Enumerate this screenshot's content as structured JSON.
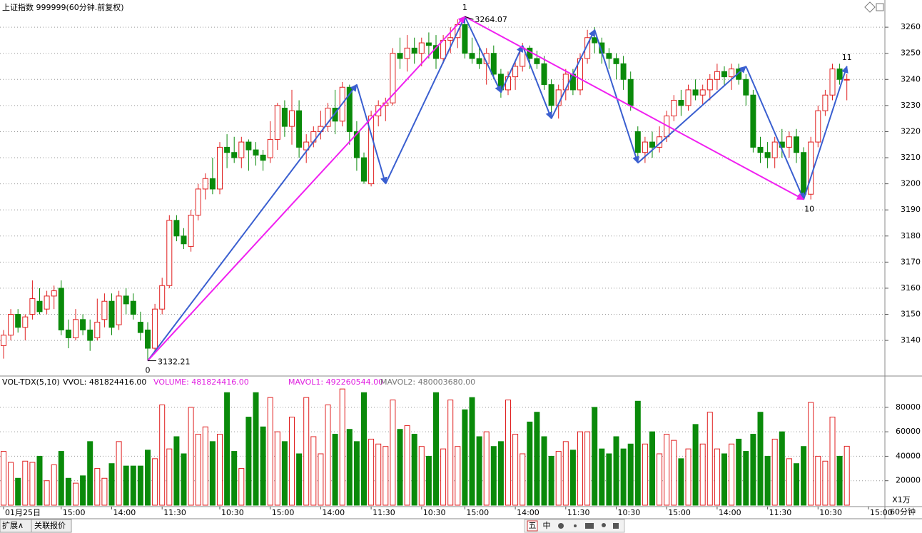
{
  "chart_data": {
    "type": "candlestick",
    "title": "上证指数 999999(60分钟.前复权)",
    "ylim": [
      3126.9,
      3265.5
    ],
    "yticks": [
      3140,
      3150,
      3160,
      3170,
      3180,
      3190,
      3200,
      3210,
      3220,
      3230,
      3240,
      3250,
      3260
    ],
    "grid": true,
    "up_color": "#e02020",
    "down_color": "#0a8a0a",
    "candles": [
      [
        3138,
        3144,
        3133,
        3142
      ],
      [
        3142,
        3152,
        3140,
        3150
      ],
      [
        3150,
        3152,
        3143,
        3145
      ],
      [
        3145,
        3150,
        3140,
        3149
      ],
      [
        3150,
        3163,
        3148,
        3156
      ],
      [
        3155,
        3160,
        3150,
        3151
      ],
      [
        3152,
        3159,
        3150,
        3157
      ],
      [
        3157,
        3161,
        3152,
        3159
      ],
      [
        3160,
        3163,
        3142,
        3144
      ],
      [
        3144,
        3148,
        3137,
        3141
      ],
      [
        3141,
        3152,
        3140,
        3148
      ],
      [
        3148,
        3150,
        3142,
        3144
      ],
      [
        3144,
        3148,
        3136,
        3140
      ],
      [
        3141,
        3156,
        3140,
        3147
      ],
      [
        3148,
        3158,
        3145,
        3155
      ],
      [
        3155,
        3158,
        3142,
        3145
      ],
      [
        3146,
        3159,
        3144,
        3157
      ],
      [
        3157,
        3160,
        3150,
        3154
      ],
      [
        3155,
        3158,
        3148,
        3150
      ],
      [
        3147,
        3151,
        3140,
        3143
      ],
      [
        3144,
        3147,
        3132.21,
        3137
      ],
      [
        3137,
        3154,
        3136,
        3152
      ],
      [
        3152,
        3164,
        3150,
        3161
      ],
      [
        3161,
        3188,
        3160,
        3186
      ],
      [
        3186,
        3188,
        3178,
        3180
      ],
      [
        3180,
        3183,
        3175,
        3177
      ],
      [
        3176,
        3190,
        3174,
        3188
      ],
      [
        3188,
        3200,
        3186,
        3198
      ],
      [
        3198,
        3204,
        3194,
        3202
      ],
      [
        3202,
        3210,
        3196,
        3198
      ],
      [
        3198,
        3216,
        3196,
        3214
      ],
      [
        3214,
        3219,
        3206,
        3212
      ],
      [
        3212,
        3218,
        3208,
        3210
      ],
      [
        3210,
        3218,
        3206,
        3216
      ],
      [
        3216,
        3217,
        3205,
        3213
      ],
      [
        3213,
        3216,
        3207,
        3211
      ],
      [
        3211,
        3213,
        3205,
        3209
      ],
      [
        3210,
        3224,
        3208,
        3217
      ],
      [
        3217,
        3231,
        3213,
        3230
      ],
      [
        3229,
        3232,
        3218,
        3222
      ],
      [
        3222,
        3236,
        3215,
        3228
      ],
      [
        3228,
        3232,
        3210,
        3214
      ],
      [
        3213,
        3219,
        3208,
        3216
      ],
      [
        3216,
        3222,
        3214,
        3220
      ],
      [
        3220,
        3228,
        3217,
        3222
      ],
      [
        3222,
        3231,
        3220,
        3229
      ],
      [
        3229,
        3236,
        3219,
        3224
      ],
      [
        3224,
        3239,
        3222,
        3237
      ],
      [
        3237,
        3238,
        3215,
        3220
      ],
      [
        3220,
        3224,
        3205,
        3210
      ],
      [
        3210,
        3212,
        3200,
        3201
      ],
      [
        3200,
        3228,
        3199,
        3226
      ],
      [
        3226,
        3232,
        3222,
        3230
      ],
      [
        3230,
        3233,
        3224,
        3231
      ],
      [
        3231,
        3252,
        3230,
        3250
      ],
      [
        3250,
        3256,
        3244,
        3248
      ],
      [
        3248,
        3257,
        3243,
        3252
      ],
      [
        3252,
        3256,
        3246,
        3250
      ],
      [
        3250,
        3256,
        3245,
        3254
      ],
      [
        3254,
        3258,
        3248,
        3253
      ],
      [
        3253,
        3257,
        3244,
        3248
      ],
      [
        3248,
        3257,
        3246,
        3255
      ],
      [
        3255,
        3260,
        3250,
        3256
      ],
      [
        3256,
        3263,
        3252,
        3261
      ],
      [
        3261,
        3264.07,
        3248,
        3250
      ],
      [
        3250,
        3256,
        3246,
        3248
      ],
      [
        3248,
        3252,
        3244,
        3246
      ],
      [
        3246,
        3252,
        3238,
        3250
      ],
      [
        3250,
        3253,
        3240,
        3242
      ],
      [
        3242,
        3244,
        3233,
        3236
      ],
      [
        3236,
        3243,
        3234,
        3241
      ],
      [
        3241,
        3247,
        3236,
        3245
      ],
      [
        3245,
        3254,
        3243,
        3252
      ],
      [
        3252,
        3253,
        3244,
        3248
      ],
      [
        3248,
        3251,
        3244,
        3246
      ],
      [
        3246,
        3249,
        3236,
        3238
      ],
      [
        3238,
        3240,
        3226,
        3230
      ],
      [
        3230,
        3238,
        3225,
        3236
      ],
      [
        3236,
        3244,
        3232,
        3242
      ],
      [
        3242,
        3244,
        3234,
        3236
      ],
      [
        3236,
        3250,
        3234,
        3248
      ],
      [
        3248,
        3259,
        3246,
        3256
      ],
      [
        3256,
        3260,
        3250,
        3254
      ],
      [
        3254,
        3256,
        3246,
        3250
      ],
      [
        3250,
        3252,
        3244,
        3248
      ],
      [
        3248,
        3250,
        3240,
        3246
      ],
      [
        3246,
        3249,
        3236,
        3240
      ],
      [
        3240,
        3243,
        3228,
        3230
      ],
      [
        3220,
        3222,
        3210,
        3212
      ],
      [
        3212,
        3218,
        3208,
        3216
      ],
      [
        3216,
        3220,
        3210,
        3214
      ],
      [
        3214,
        3222,
        3212,
        3218
      ],
      [
        3218,
        3228,
        3216,
        3226
      ],
      [
        3226,
        3234,
        3224,
        3232
      ],
      [
        3232,
        3236,
        3226,
        3230
      ],
      [
        3230,
        3238,
        3228,
        3236
      ],
      [
        3236,
        3240,
        3232,
        3234
      ],
      [
        3234,
        3238,
        3230,
        3236
      ],
      [
        3236,
        3242,
        3232,
        3240
      ],
      [
        3240,
        3246,
        3236,
        3243
      ],
      [
        3243,
        3245,
        3238,
        3241
      ],
      [
        3241,
        3246,
        3236,
        3244
      ],
      [
        3244,
        3246,
        3238,
        3240
      ],
      [
        3240,
        3242,
        3230,
        3234
      ],
      [
        3234,
        3236,
        3212,
        3214
      ],
      [
        3214,
        3218,
        3208,
        3212
      ],
      [
        3212,
        3216,
        3206,
        3210
      ],
      [
        3210,
        3218,
        3206,
        3216
      ],
      [
        3216,
        3221,
        3210,
        3214
      ],
      [
        3214,
        3220,
        3210,
        3218
      ],
      [
        3218,
        3221,
        3208,
        3212
      ],
      [
        3212,
        3214,
        3194,
        3196
      ],
      [
        3196,
        3218,
        3194,
        3216
      ],
      [
        3216,
        3230,
        3214,
        3228
      ],
      [
        3228,
        3236,
        3226,
        3234
      ],
      [
        3234,
        3246,
        3232,
        3244
      ],
      [
        3244,
        3246,
        3238,
        3240
      ],
      [
        3240,
        3242,
        3232,
        3240
      ]
    ],
    "zigzag": [
      [
        20,
        3132.21
      ],
      [
        49,
        3238
      ],
      [
        53,
        3200
      ],
      [
        64,
        3264.07
      ],
      [
        69,
        3235
      ],
      [
        72,
        3253
      ],
      [
        76,
        3225
      ],
      [
        82,
        3259
      ],
      [
        88,
        3208
      ],
      [
        103,
        3245
      ],
      [
        111,
        3194
      ],
      [
        117,
        3245
      ]
    ],
    "zigzag_color": "#3a5fd0",
    "pivots": {
      "labels": [
        "0",
        "1",
        "10",
        "11"
      ],
      "points": [
        [
          20,
          3132.21
        ],
        [
          64,
          3264.07
        ],
        [
          111,
          3194
        ],
        [
          117,
          3245
        ]
      ],
      "color": "#f020f0"
    },
    "time_labels": {
      "labels": [
        "01月25日",
        "15:00",
        "14:00",
        "11:30",
        "10:30",
        "15:00",
        "14:00",
        "11:30",
        "10:30",
        "15:00",
        "14:00",
        "11:30",
        "10:30",
        "15:00",
        "14:00",
        "11:30",
        "10:30",
        "15:00"
      ],
      "at": [
        0,
        8,
        15,
        22,
        30,
        37,
        44,
        51,
        58,
        64,
        71,
        78,
        85,
        92,
        99,
        106,
        113,
        120
      ]
    },
    "volume": {
      "header": [
        "VOL-TDX(5,10)",
        "VVOL: 481824416.00",
        "VOLUME: 481824416.00",
        "MAVOL1: 492260544.00",
        "MAVOL2: 480003680.00"
      ],
      "ylim": [
        0,
        105000
      ],
      "yticks": [
        20000,
        40000,
        60000,
        80000
      ],
      "values": [
        44000,
        35000,
        22000,
        36000,
        35000,
        40000,
        20000,
        33000,
        44000,
        22000,
        18000,
        24000,
        52000,
        30000,
        22000,
        34000,
        52000,
        32000,
        32000,
        32000,
        45000,
        38000,
        82000,
        46000,
        56000,
        42000,
        80000,
        58000,
        64000,
        52000,
        58000,
        92000,
        44000,
        30000,
        72000,
        92000,
        64000,
        88000,
        60000,
        52000,
        72000,
        42000,
        88000,
        56000,
        42000,
        82000,
        58000,
        95000,
        62000,
        52000,
        92000,
        54000,
        50000,
        48000,
        86000,
        62000,
        65000,
        58000,
        48000,
        40000,
        92000,
        46000,
        86000,
        48000,
        78000,
        88000,
        56000,
        60000,
        48000,
        52000,
        86000,
        58000,
        42000,
        68000,
        76000,
        56000,
        40000,
        44000,
        52000,
        45000,
        60000,
        60000,
        80000,
        46000,
        42000,
        56000,
        46000,
        50000,
        85000,
        50000,
        60000,
        42000,
        58000,
        53000,
        38000,
        46000,
        66000,
        50000,
        76000,
        46000,
        42000,
        50000,
        54000,
        44000,
        58000,
        76000,
        40000,
        54000,
        60000,
        38000,
        34000,
        48000,
        84000,
        40000,
        36000,
        72000,
        40000,
        48182
      ],
      "unit": "X1万"
    },
    "period": "60分钟",
    "tabs": [
      "扩展∧",
      "关联报价"
    ],
    "toolbar": [
      "五",
      "中"
    ]
  }
}
